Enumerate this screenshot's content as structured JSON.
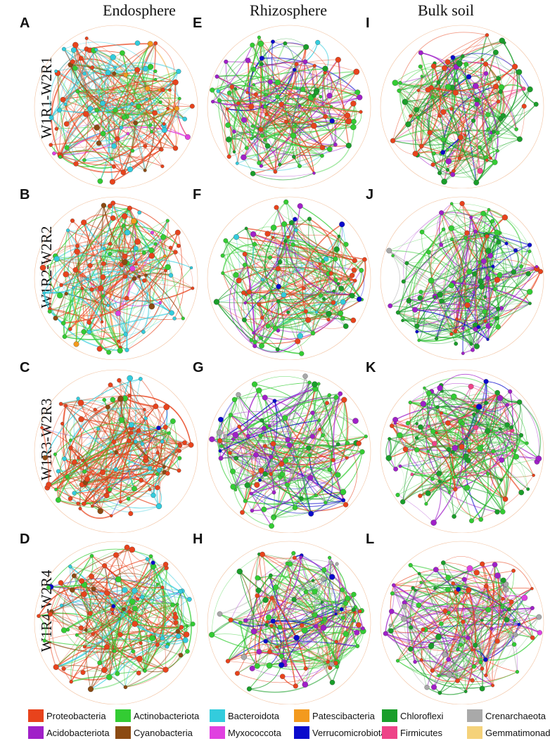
{
  "columns": [
    "Endosphere",
    "Rhizosphere",
    "Bulk soil"
  ],
  "rows": [
    "W1R1-W2R1",
    "W1R2-W2R2",
    "W1R3-W2R3",
    "W1R4-W2R4"
  ],
  "panels": [
    {
      "letter": "A",
      "row": 0,
      "col": 0,
      "mix": {
        "Proteobacteria": 5,
        "Actinobacteriota": 3,
        "Bacteroidota": 2,
        "Cyanobacteria": 1,
        "Patescibacteria": 0.5,
        "Myxococcota": 0.3
      }
    },
    {
      "letter": "E",
      "row": 0,
      "col": 1,
      "mix": {
        "Actinobacteriota": 4,
        "Proteobacteria": 3,
        "Chloroflexi": 2,
        "Acidobacteriota": 1.5,
        "Verrucomicrobiota": 0.5,
        "Bacteroidota": 0.7
      }
    },
    {
      "letter": "I",
      "row": 0,
      "col": 2,
      "mix": {
        "Chloroflexi": 4,
        "Actinobacteriota": 3,
        "Proteobacteria": 3,
        "Acidobacteriota": 1,
        "Verrucomicrobiota": 0.5,
        "Firmicutes": 0.4
      }
    },
    {
      "letter": "B",
      "row": 1,
      "col": 0,
      "mix": {
        "Proteobacteria": 5,
        "Actinobacteriota": 3,
        "Bacteroidota": 2,
        "Cyanobacteria": 1,
        "Patescibacteria": 0.4,
        "Myxococcota": 0.3
      }
    },
    {
      "letter": "F",
      "row": 1,
      "col": 1,
      "mix": {
        "Actinobacteriota": 4,
        "Proteobacteria": 3,
        "Chloroflexi": 2,
        "Acidobacteriota": 1,
        "Verrucomicrobiota": 0.6,
        "Bacteroidota": 0.4
      }
    },
    {
      "letter": "J",
      "row": 1,
      "col": 2,
      "mix": {
        "Chloroflexi": 4,
        "Actinobacteriota": 3,
        "Proteobacteria": 2,
        "Acidobacteriota": 2,
        "Verrucomicrobiota": 1,
        "Crenarchaeota": 0.5
      }
    },
    {
      "letter": "C",
      "row": 2,
      "col": 0,
      "mix": {
        "Proteobacteria": 6,
        "Actinobacteriota": 2,
        "Bacteroidota": 2,
        "Cyanobacteria": 0.8,
        "Verrucomicrobiota": 0.3
      }
    },
    {
      "letter": "G",
      "row": 2,
      "col": 1,
      "mix": {
        "Actinobacteriota": 4,
        "Acidobacteriota": 3,
        "Proteobacteria": 2,
        "Chloroflexi": 2,
        "Verrucomicrobiota": 1,
        "Crenarchaeota": 1
      }
    },
    {
      "letter": "K",
      "row": 2,
      "col": 2,
      "mix": {
        "Chloroflexi": 4,
        "Actinobacteriota": 3,
        "Proteobacteria": 3,
        "Acidobacteriota": 2,
        "Firmicutes": 0.6,
        "Verrucomicrobiota": 0.5
      }
    },
    {
      "letter": "D",
      "row": 3,
      "col": 0,
      "mix": {
        "Proteobacteria": 5,
        "Actinobacteriota": 3,
        "Bacteroidota": 2,
        "Cyanobacteria": 1,
        "Verrucomicrobiota": 0.3
      }
    },
    {
      "letter": "H",
      "row": 3,
      "col": 1,
      "mix": {
        "Proteobacteria": 4,
        "Actinobacteriota": 3,
        "Chloroflexi": 2,
        "Acidobacteriota": 1.5,
        "Verrucomicrobiota": 1,
        "Crenarchaeota": 0.6
      }
    },
    {
      "letter": "L",
      "row": 3,
      "col": 2,
      "mix": {
        "Actinobacteriota": 3,
        "Proteobacteria": 3,
        "Acidobacteriota": 2,
        "Chloroflexi": 2,
        "Crenarchaeota": 1,
        "Verrucomicrobiota": 0.6,
        "Myxococcota": 0.6
      }
    }
  ],
  "legend": [
    {
      "name": "Proteobacteria",
      "color": "#e8431c"
    },
    {
      "name": "Actinobacteriota",
      "color": "#33cc33"
    },
    {
      "name": "Bacteroidota",
      "color": "#33ccdd"
    },
    {
      "name": "Patescibacteria",
      "color": "#f39a1e"
    },
    {
      "name": "Chloroflexi",
      "color": "#1a9e2a"
    },
    {
      "name": "Crenarchaeota",
      "color": "#a9a9a9"
    },
    {
      "name": "Acidobacteriota",
      "color": "#a020c8"
    },
    {
      "name": "Cyanobacteria",
      "color": "#8b4a12"
    },
    {
      "name": "Myxococcota",
      "color": "#e040e0"
    },
    {
      "name": "Verrucomicrobiota",
      "color": "#0a0acc"
    },
    {
      "name": "Firmicutes",
      "color": "#ee4488"
    },
    {
      "name": "Gemmatimonadota",
      "color": "#f5d27a"
    }
  ]
}
